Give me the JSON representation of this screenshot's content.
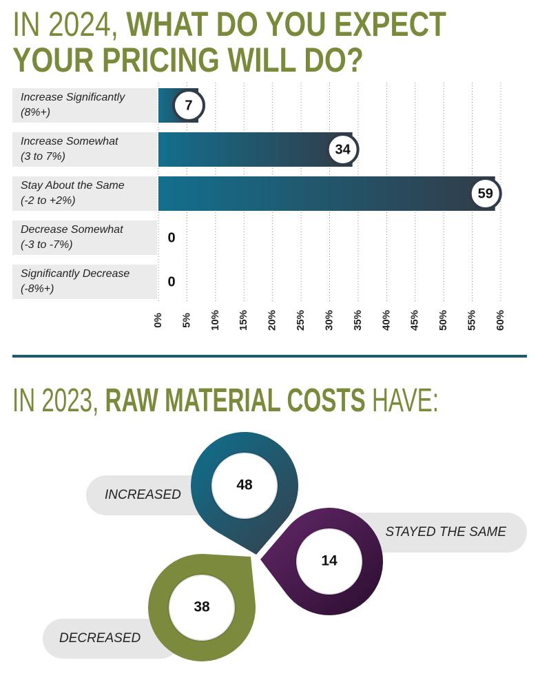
{
  "chart_data": [
    {
      "type": "bar",
      "title": [
        "IN 2024,",
        "WHAT DO YOU EXPECT",
        "YOUR PRICING WILL DO?"
      ],
      "categories": [
        "Increase Significantly\n(8%+)",
        "Increase Somewhat\n(3 to 7%)",
        "Stay About the Same\n(-2 to +2%)",
        "Decrease Somewhat\n(-3 to -7%)",
        "Significantly Decrease\n(-8%+)"
      ],
      "values": [
        7,
        34,
        59,
        0,
        0
      ],
      "colors": [
        "#136f8e",
        "#323c48"
      ],
      "xlim": [
        0,
        60
      ],
      "xticks": [
        {
          "value": 0,
          "label": "0%"
        },
        {
          "value": 5,
          "label": "5%"
        },
        {
          "value": 10,
          "label": "10%"
        },
        {
          "value": 15,
          "label": "15%"
        },
        {
          "value": 20,
          "label": "20%"
        },
        {
          "value": 25,
          "label": "25%"
        },
        {
          "value": 30,
          "label": "30%"
        },
        {
          "value": 35,
          "label": "35%"
        },
        {
          "value": 40,
          "label": "40%"
        },
        {
          "value": 45,
          "label": "45%"
        },
        {
          "value": 50,
          "label": "50%"
        },
        {
          "value": 55,
          "label": "55%"
        },
        {
          "value": 60,
          "label": "60%"
        }
      ],
      "grid": true
    },
    {
      "type": "pin",
      "title": [
        "IN 2023,",
        "RAW MATERIAL COSTS",
        "HAVE:"
      ],
      "categories": [
        "INCREASED",
        "STAYED THE SAME",
        "DECREASED"
      ],
      "values": [
        48,
        14,
        38
      ],
      "colors": [
        [
          "#0d7090",
          "#36404a"
        ],
        [
          "#64286a",
          "#2a0e2e"
        ],
        [
          "#7b8a3c",
          "#7b8a3c"
        ]
      ]
    }
  ]
}
